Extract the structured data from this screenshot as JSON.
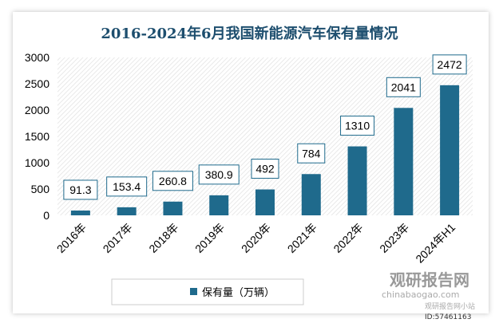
{
  "chart_data": {
    "type": "bar",
    "title": "2016-2024年6月我国新能源汽车保有量情况",
    "categories": [
      "2016年",
      "2017年",
      "2018年",
      "2019年",
      "2020年",
      "2021年",
      "2022年",
      "2023年",
      "2024年H1"
    ],
    "series": [
      {
        "name": "保有量（万辆）",
        "values": [
          91.3,
          153.4,
          260.8,
          380.9,
          492,
          784,
          1310,
          2041,
          2472
        ],
        "labels": [
          "91.3",
          "153.4",
          "260.8",
          "380.9",
          "492",
          "784",
          "1310",
          "2041",
          "2472"
        ]
      }
    ],
    "ylim": [
      0,
      3000
    ],
    "yticks": [
      0,
      500,
      1000,
      1500,
      2000,
      2500,
      3000
    ],
    "xlabel": "",
    "ylabel": "",
    "legend": "bottom",
    "color": "#1f6a8c"
  },
  "watermark": {
    "brand": "观研报告网",
    "url": "chinabaogao.com",
    "sub": "观研报告网小站",
    "id": "ID:57461163"
  }
}
